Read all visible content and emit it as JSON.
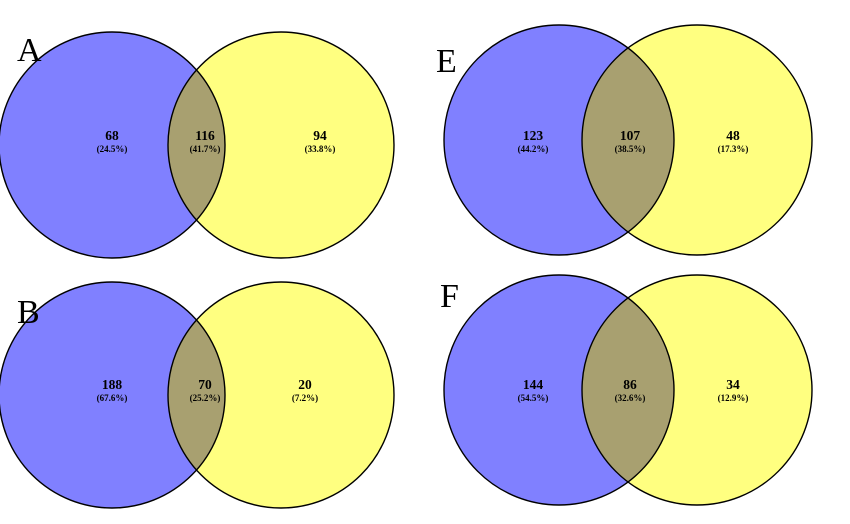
{
  "colors": {
    "left_fill": "#8080ff",
    "right_fill": "#ffff80",
    "overlap_fill": "#a8a070",
    "stroke": "#000000"
  },
  "panels": [
    {
      "label": "A",
      "left": {
        "count": "68",
        "pct": "(24.5%)"
      },
      "overlap": {
        "count": "116",
        "pct": "(41.7%)"
      },
      "right": {
        "count": "94",
        "pct": "(33.8%)"
      }
    },
    {
      "label": "E",
      "left": {
        "count": "123",
        "pct": "(44.2%)"
      },
      "overlap": {
        "count": "107",
        "pct": "(38.5%)"
      },
      "right": {
        "count": "48",
        "pct": "(17.3%)"
      }
    },
    {
      "label": "B",
      "left": {
        "count": "188",
        "pct": "(67.6%)"
      },
      "overlap": {
        "count": "70",
        "pct": "(25.2%)"
      },
      "right": {
        "count": "20",
        "pct": "(7.2%)"
      }
    },
    {
      "label": "F",
      "left": {
        "count": "144",
        "pct": "(54.5%)"
      },
      "overlap": {
        "count": "86",
        "pct": "(32.6%)"
      },
      "right": {
        "count": "34",
        "pct": "(12.9%)"
      }
    }
  ]
}
